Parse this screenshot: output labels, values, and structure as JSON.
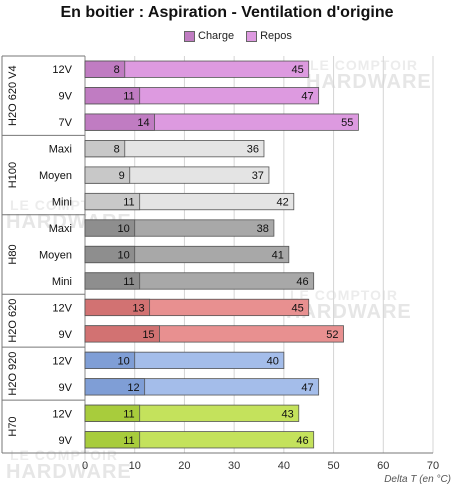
{
  "title": "En boitier : Aspiration - Ventilation d'origine",
  "watermark": [
    "LE COMPTOIR",
    "HARDWARE"
  ],
  "chart_data": {
    "type": "bar",
    "orientation": "horizontal",
    "stacked_overlay": true,
    "xlabel": "Delta T (en °C)",
    "xlim": [
      0,
      70
    ],
    "xticks": [
      0,
      10,
      20,
      30,
      40,
      50,
      60,
      70
    ],
    "grid": true,
    "legend_position": "top",
    "series_names": [
      "Charge",
      "Repos"
    ],
    "groups": [
      {
        "name": "H2O 620 V4",
        "colors": {
          "charge": "#c07cc2",
          "repos": "#dd9ae0"
        },
        "rows": [
          {
            "label": "12V",
            "charge": 8,
            "repos": 45
          },
          {
            "label": "9V",
            "charge": 11,
            "repos": 47
          },
          {
            "label": "7V",
            "charge": 14,
            "repos": 55
          }
        ]
      },
      {
        "name": "H100",
        "colors": {
          "charge": "#c8c8c8",
          "repos": "#e4e4e4"
        },
        "rows": [
          {
            "label": "Maxi",
            "charge": 8,
            "repos": 36
          },
          {
            "label": "Moyen",
            "charge": 9,
            "repos": 37
          },
          {
            "label": "Mini",
            "charge": 11,
            "repos": 42
          }
        ]
      },
      {
        "name": "H80",
        "colors": {
          "charge": "#8e8e8e",
          "repos": "#a8a8a8"
        },
        "rows": [
          {
            "label": "Maxi",
            "charge": 10,
            "repos": 38
          },
          {
            "label": "Moyen",
            "charge": 10,
            "repos": 41
          },
          {
            "label": "Mini",
            "charge": 11,
            "repos": 46
          }
        ]
      },
      {
        "name": "H2O 620",
        "colors": {
          "charge": "#d27272",
          "repos": "#e89090"
        },
        "rows": [
          {
            "label": "12V",
            "charge": 13,
            "repos": 45
          },
          {
            "label": "9V",
            "charge": 15,
            "repos": 52
          }
        ]
      },
      {
        "name": "H2O 920",
        "colors": {
          "charge": "#7f9ed6",
          "repos": "#a4bdea"
        },
        "rows": [
          {
            "label": "12V",
            "charge": 10,
            "repos": 40
          },
          {
            "label": "9V",
            "charge": 12,
            "repos": 47
          }
        ]
      },
      {
        "name": "H70",
        "colors": {
          "charge": "#a8cc3c",
          "repos": "#c4e25c"
        },
        "rows": [
          {
            "label": "12V",
            "charge": 11,
            "repos": 43
          },
          {
            "label": "9V",
            "charge": 11,
            "repos": 46
          }
        ]
      }
    ]
  },
  "legend": [
    {
      "label": "Charge",
      "color": "#c07cc2"
    },
    {
      "label": "Repos",
      "color": "#dd9ae0"
    }
  ]
}
